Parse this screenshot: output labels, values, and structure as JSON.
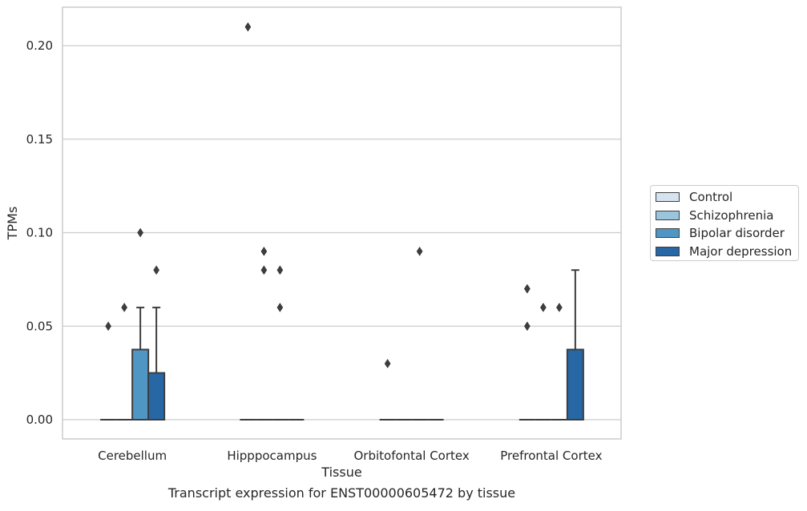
{
  "chart_data": {
    "type": "box",
    "title": "Transcript expression for ENST00000605472 by tissue",
    "xlabel": "Tissue",
    "ylabel": "TPMs",
    "categories": [
      "Cerebellum",
      "Hipppocampus",
      "Orbitofontal Cortex",
      "Prefrontal Cortex"
    ],
    "ylim": [
      -0.01,
      0.22
    ],
    "yticks": [
      0.0,
      0.05,
      0.1,
      0.15,
      0.2
    ],
    "ytick_labels": [
      "0.00",
      "0.05",
      "0.10",
      "0.15",
      "0.20"
    ],
    "grid": "horizontal",
    "legend_position": "right",
    "series": [
      {
        "name": "Control",
        "color": "#d5e3f0",
        "boxes": [
          {
            "q1": 0,
            "median": 0,
            "q3": 0,
            "whisker_low": 0,
            "whisker_high": 0,
            "outliers": [
              0.05
            ]
          },
          {
            "q1": 0,
            "median": 0,
            "q3": 0,
            "whisker_low": 0,
            "whisker_high": 0,
            "outliers": [
              0.21
            ]
          },
          {
            "q1": 0,
            "median": 0,
            "q3": 0,
            "whisker_low": 0,
            "whisker_high": 0,
            "outliers": [
              0.03
            ]
          },
          {
            "q1": 0,
            "median": 0,
            "q3": 0,
            "whisker_low": 0,
            "whisker_high": 0,
            "outliers": [
              0.05,
              0.07,
              0.07
            ]
          }
        ]
      },
      {
        "name": "Schizophrenia",
        "color": "#9ac5dd",
        "boxes": [
          {
            "q1": 0,
            "median": 0,
            "q3": 0,
            "whisker_low": 0,
            "whisker_high": 0,
            "outliers": [
              0.06
            ]
          },
          {
            "q1": 0,
            "median": 0,
            "q3": 0,
            "whisker_low": 0,
            "whisker_high": 0,
            "outliers": [
              0.08,
              0.09
            ]
          },
          {
            "q1": 0,
            "median": 0,
            "q3": 0,
            "whisker_low": 0,
            "whisker_high": 0,
            "outliers": []
          },
          {
            "q1": 0,
            "median": 0,
            "q3": 0,
            "whisker_low": 0,
            "whisker_high": 0,
            "outliers": [
              0.06
            ]
          }
        ]
      },
      {
        "name": "Bipolar disorder",
        "color": "#5096c5",
        "boxes": [
          {
            "q1": 0,
            "median": 0,
            "q3": 0.0375,
            "whisker_low": 0,
            "whisker_high": 0.06,
            "outliers": [
              0.1
            ]
          },
          {
            "q1": 0,
            "median": 0,
            "q3": 0,
            "whisker_low": 0,
            "whisker_high": 0,
            "outliers": [
              0.06,
              0.08
            ]
          },
          {
            "q1": 0,
            "median": 0,
            "q3": 0,
            "whisker_low": 0,
            "whisker_high": 0,
            "outliers": [
              0.09
            ]
          },
          {
            "q1": 0,
            "median": 0,
            "q3": 0,
            "whisker_low": 0,
            "whisker_high": 0,
            "outliers": [
              0.06
            ]
          }
        ]
      },
      {
        "name": "Major depression",
        "color": "#2767a6",
        "boxes": [
          {
            "q1": 0,
            "median": 0,
            "q3": 0.025,
            "whisker_low": 0,
            "whisker_high": 0.06,
            "outliers": [
              0.08
            ]
          },
          {
            "q1": 0,
            "median": 0,
            "q3": 0,
            "whisker_low": 0,
            "whisker_high": 0,
            "outliers": []
          },
          {
            "q1": 0,
            "median": 0,
            "q3": 0,
            "whisker_low": 0,
            "whisker_high": 0,
            "outliers": []
          },
          {
            "q1": 0,
            "median": 0,
            "q3": 0.0375,
            "whisker_low": 0,
            "whisker_high": 0.08,
            "outliers": []
          }
        ]
      }
    ]
  }
}
